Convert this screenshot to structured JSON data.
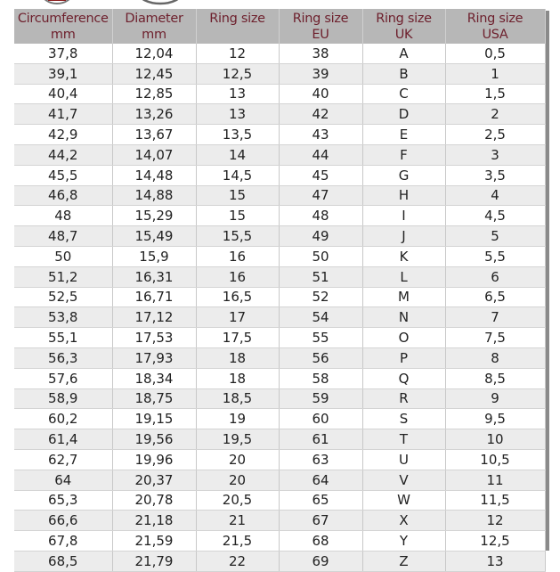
{
  "header": [
    {
      "line1": "Circumference",
      "line2": "mm"
    },
    {
      "line1": "Diameter",
      "line2": "mm"
    },
    {
      "line1": "Ring size",
      "line2": ""
    },
    {
      "line1": "Ring size",
      "line2": "EU"
    },
    {
      "line1": "Ring size",
      "line2": "UK"
    },
    {
      "line1": "Ring size",
      "line2": "USA"
    }
  ],
  "rows": [
    [
      "37,8",
      "12,04",
      "12",
      "38",
      "A",
      "0,5"
    ],
    [
      "39,1",
      "12,45",
      "12,5",
      "39",
      "B",
      "1"
    ],
    [
      "40,4",
      "12,85",
      "13",
      "40",
      "C",
      "1,5"
    ],
    [
      "41,7",
      "13,26",
      "13",
      "42",
      "D",
      "2"
    ],
    [
      "42,9",
      "13,67",
      "13,5",
      "43",
      "E",
      "2,5"
    ],
    [
      "44,2",
      "14,07",
      "14",
      "44",
      "F",
      "3"
    ],
    [
      "45,5",
      "14,48",
      "14,5",
      "45",
      "G",
      "3,5"
    ],
    [
      "46,8",
      "14,88",
      "15",
      "47",
      "H",
      "4"
    ],
    [
      "48",
      "15,29",
      "15",
      "48",
      "I",
      "4,5"
    ],
    [
      "48,7",
      "15,49",
      "15,5",
      "49",
      "J",
      "5"
    ],
    [
      "50",
      "15,9",
      "16",
      "50",
      "K",
      "5,5"
    ],
    [
      "51,2",
      "16,31",
      "16",
      "51",
      "L",
      "6"
    ],
    [
      "52,5",
      "16,71",
      "16,5",
      "52",
      "M",
      "6,5"
    ],
    [
      "53,8",
      "17,12",
      "17",
      "54",
      "N",
      "7"
    ],
    [
      "55,1",
      "17,53",
      "17,5",
      "55",
      "O",
      "7,5"
    ],
    [
      "56,3",
      "17,93",
      "18",
      "56",
      "P",
      "8"
    ],
    [
      "57,6",
      "18,34",
      "18",
      "58",
      "Q",
      "8,5"
    ],
    [
      "58,9",
      "18,75",
      "18,5",
      "59",
      "R",
      "9"
    ],
    [
      "60,2",
      "19,15",
      "19",
      "60",
      "S",
      "9,5"
    ],
    [
      "61,4",
      "19,56",
      "19,5",
      "61",
      "T",
      "10"
    ],
    [
      "62,7",
      "19,96",
      "20",
      "63",
      "U",
      "10,5"
    ],
    [
      "64",
      "20,37",
      "20",
      "64",
      "V",
      "11"
    ],
    [
      "65,3",
      "20,78",
      "20,5",
      "65",
      "W",
      "11,5"
    ],
    [
      "66,6",
      "21,18",
      "21",
      "67",
      "X",
      "12"
    ],
    [
      "67,8",
      "21,59",
      "21,5",
      "68",
      "Y",
      "12,5"
    ],
    [
      "68,5",
      "21,79",
      "22",
      "69",
      "Z",
      "13"
    ]
  ],
  "colors": {
    "header_bg": "#b7b7b7",
    "header_text": "#6d1f2c",
    "stripe": "#ececec"
  }
}
